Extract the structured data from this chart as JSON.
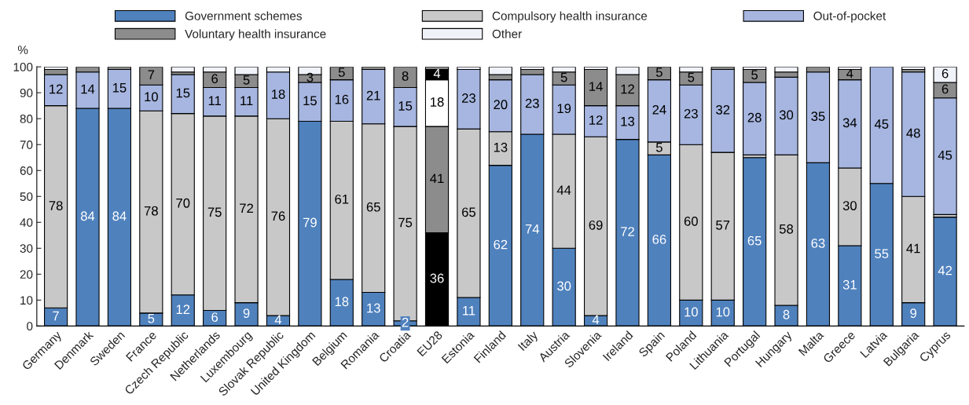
{
  "chart_data": {
    "type": "bar",
    "stacked": true,
    "ylabel": "%",
    "ylim": [
      0,
      100
    ],
    "yticks": [
      0,
      10,
      20,
      30,
      40,
      50,
      60,
      70,
      80,
      90,
      100
    ],
    "grid": false,
    "legend": "top",
    "categories": [
      "Germany",
      "Denmark",
      "Sweden",
      "France",
      "Czech Republic",
      "Netherlands",
      "Luxembourg",
      "Slovak Republic",
      "United Kingdom",
      "Belgium",
      "Romania",
      "Croatia",
      "EU28",
      "Estonia",
      "Finland",
      "Italy",
      "Austria",
      "Slovenia",
      "Ireland",
      "Spain",
      "Poland",
      "Lithuania",
      "Portugal",
      "Hungary",
      "Malta",
      "Greece",
      "Latvia",
      "Bulgaria",
      "Cyprus"
    ],
    "series": [
      {
        "name": "Government schemes",
        "color": "#4f81bd",
        "colors": [
          "#4f81bd",
          "#4f81bd",
          "#4f81bd",
          "#4f81bd",
          "#4f81bd",
          "#4f81bd",
          "#4f81bd",
          "#4f81bd",
          "#4f81bd",
          "#4f81bd",
          "#4f81bd",
          "#4f81bd",
          "#000000",
          "#4f81bd",
          "#4f81bd",
          "#4f81bd",
          "#4f81bd",
          "#4f81bd",
          "#4f81bd",
          "#4f81bd",
          "#4f81bd",
          "#4f81bd",
          "#4f81bd",
          "#4f81bd",
          "#4f81bd",
          "#4f81bd",
          "#4f81bd",
          "#4f81bd",
          "#4f81bd"
        ],
        "values": [
          7,
          84,
          84,
          5,
          12,
          6,
          9,
          4,
          79,
          18,
          13,
          2,
          36,
          11,
          62,
          74,
          30,
          4,
          72,
          66,
          10,
          10,
          65,
          8,
          63,
          31,
          55,
          9,
          42
        ],
        "value_labels": [
          "7",
          "84",
          "84",
          "5",
          "12",
          "6",
          "9",
          "4",
          "79",
          "18",
          "13",
          "2",
          "36",
          "11",
          "62",
          "74",
          "30",
          "4",
          "72",
          "66",
          "10",
          "10",
          "65",
          "8",
          "63",
          "31",
          "55",
          "9",
          "42"
        ]
      },
      {
        "name": "Compulsory health insurance",
        "color": "#c8c8c8",
        "colors": [
          "#c8c8c8",
          "#c8c8c8",
          "#c8c8c8",
          "#c8c8c8",
          "#c8c8c8",
          "#c8c8c8",
          "#c8c8c8",
          "#c8c8c8",
          "#c8c8c8",
          "#c8c8c8",
          "#c8c8c8",
          "#c8c8c8",
          "#8c8c8c",
          "#c8c8c8",
          "#c8c8c8",
          "#c8c8c8",
          "#c8c8c8",
          "#c8c8c8",
          "#c8c8c8",
          "#c8c8c8",
          "#c8c8c8",
          "#c8c8c8",
          "#c8c8c8",
          "#c8c8c8",
          "#c8c8c8",
          "#c8c8c8",
          "#c8c8c8",
          "#c8c8c8",
          "#c8c8c8"
        ],
        "values": [
          78,
          0,
          0,
          78,
          70,
          75,
          72,
          76,
          0,
          61,
          65,
          75,
          41,
          65,
          13,
          0,
          44,
          69,
          0,
          5,
          60,
          57,
          1,
          58,
          0,
          30,
          0,
          41,
          1
        ],
        "value_labels": [
          "78",
          null,
          null,
          "78",
          "70",
          "75",
          "72",
          "76",
          null,
          "61",
          "65",
          "75",
          "41",
          "65",
          "13",
          null,
          "44",
          "69",
          null,
          "5",
          "60",
          "57",
          null,
          "58",
          null,
          "30",
          null,
          "41",
          null
        ]
      },
      {
        "name": "Out-of-pocket",
        "color": "#a6b6e0",
        "colors": [
          "#a6b6e0",
          "#a6b6e0",
          "#a6b6e0",
          "#a6b6e0",
          "#a6b6e0",
          "#a6b6e0",
          "#a6b6e0",
          "#a6b6e0",
          "#a6b6e0",
          "#a6b6e0",
          "#a6b6e0",
          "#a6b6e0",
          "#ffffff",
          "#a6b6e0",
          "#a6b6e0",
          "#a6b6e0",
          "#a6b6e0",
          "#a6b6e0",
          "#a6b6e0",
          "#a6b6e0",
          "#a6b6e0",
          "#a6b6e0",
          "#a6b6e0",
          "#a6b6e0",
          "#a6b6e0",
          "#a6b6e0",
          "#a6b6e0",
          "#a6b6e0",
          "#a6b6e0"
        ],
        "values": [
          12,
          14,
          15,
          10,
          15,
          11,
          11,
          18,
          15,
          16,
          21,
          15,
          18,
          23,
          20,
          23,
          19,
          12,
          13,
          24,
          23,
          32,
          28,
          30,
          35,
          34,
          45,
          48,
          45
        ],
        "value_labels": [
          "12",
          "14",
          "15",
          "10",
          "15",
          "11",
          "11",
          "18",
          "15",
          "16",
          "21",
          "15",
          "18",
          "23",
          "20",
          "23",
          "19",
          "12",
          "13",
          "24",
          "23",
          "32",
          "28",
          "30",
          "35",
          "34",
          "45",
          "48",
          "45"
        ]
      },
      {
        "name": "Voluntary health insurance",
        "color": "#8c8c8c",
        "colors": [
          "#8c8c8c",
          "#8c8c8c",
          "#8c8c8c",
          "#8c8c8c",
          "#8c8c8c",
          "#8c8c8c",
          "#8c8c8c",
          "#8c8c8c",
          "#8c8c8c",
          "#8c8c8c",
          "#8c8c8c",
          "#8c8c8c",
          "#000000",
          "#8c8c8c",
          "#8c8c8c",
          "#8c8c8c",
          "#8c8c8c",
          "#8c8c8c",
          "#8c8c8c",
          "#8c8c8c",
          "#8c8c8c",
          "#8c8c8c",
          "#8c8c8c",
          "#8c8c8c",
          "#8c8c8c",
          "#8c8c8c",
          "#8c8c8c",
          "#8c8c8c",
          "#8c8c8c"
        ],
        "values": [
          2,
          2,
          1,
          7,
          1,
          6,
          5,
          0,
          3,
          5,
          1,
          8,
          4,
          0,
          2,
          2,
          5,
          14,
          12,
          5,
          5,
          1,
          5,
          2,
          2,
          4,
          0,
          1,
          6
        ],
        "value_labels": [
          null,
          null,
          null,
          "7",
          null,
          "6",
          "5",
          null,
          "3",
          "5",
          null,
          "8",
          "4",
          null,
          null,
          null,
          "5",
          "14",
          "12",
          "5",
          "5",
          null,
          "5",
          null,
          null,
          "4",
          null,
          null,
          "6"
        ]
      },
      {
        "name": "Other",
        "color": "#f0f2fa",
        "colors": [
          "#f0f2fa",
          "#f0f2fa",
          "#f0f2fa",
          "#f0f2fa",
          "#f0f2fa",
          "#f0f2fa",
          "#f0f2fa",
          "#f0f2fa",
          "#f0f2fa",
          "#f0f2fa",
          "#f0f2fa",
          "#f0f2fa",
          "#8c8c8c",
          "#f0f2fa",
          "#f0f2fa",
          "#f0f2fa",
          "#f0f2fa",
          "#f0f2fa",
          "#f0f2fa",
          "#f0f2fa",
          "#f0f2fa",
          "#f0f2fa",
          "#f0f2fa",
          "#f0f2fa",
          "#f0f2fa",
          "#f0f2fa",
          "#f0f2fa",
          "#f0f2fa",
          "#f0f2fa"
        ],
        "values": [
          1,
          0,
          0,
          0,
          2,
          2,
          3,
          2,
          3,
          0,
          0,
          0,
          1,
          1,
          3,
          1,
          2,
          1,
          3,
          0,
          2,
          0,
          1,
          2,
          0,
          1,
          0,
          1,
          6
        ],
        "value_labels": [
          null,
          null,
          null,
          null,
          null,
          null,
          null,
          null,
          null,
          null,
          null,
          null,
          null,
          null,
          null,
          null,
          null,
          null,
          null,
          null,
          null,
          null,
          null,
          null,
          null,
          null,
          null,
          null,
          "6"
        ]
      }
    ]
  }
}
